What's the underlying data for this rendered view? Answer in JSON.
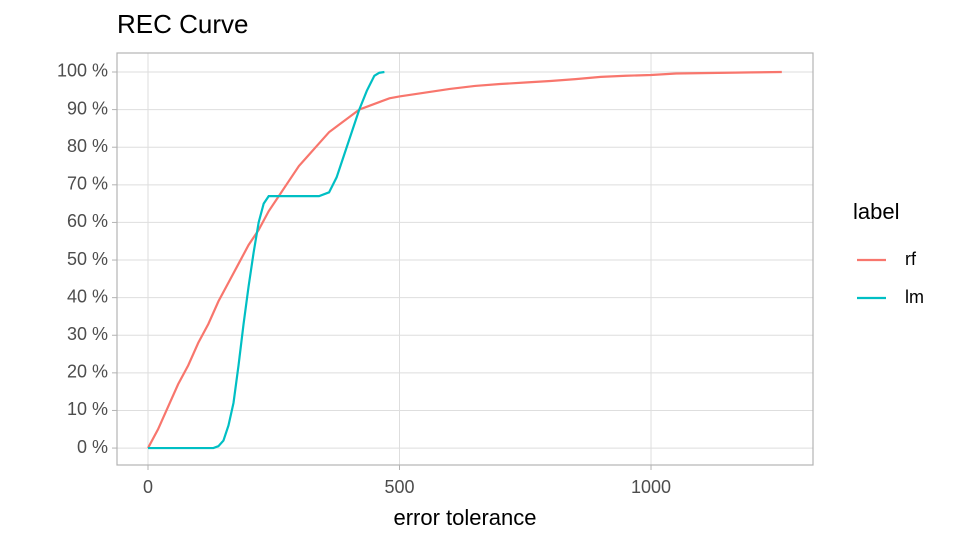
{
  "chart_data": {
    "type": "line",
    "title": "REC Curve",
    "x_label": "error tolerance",
    "legend_title": "label",
    "legend_position": "right",
    "grid": true,
    "xlim": [
      -61.6,
      1322
    ],
    "ylim": [
      -4.5,
      105.05
    ],
    "xticks": [
      0,
      500,
      1000
    ],
    "yticks": [
      {
        "value": 0,
        "label": "0 %"
      },
      {
        "value": 10,
        "label": "10 %"
      },
      {
        "value": 20,
        "label": "20 %"
      },
      {
        "value": 30,
        "label": "30 %"
      },
      {
        "value": 40,
        "label": "40 %"
      },
      {
        "value": 50,
        "label": "50 %"
      },
      {
        "value": 60,
        "label": "60 %"
      },
      {
        "value": 70,
        "label": "70 %"
      },
      {
        "value": 80,
        "label": "80 %"
      },
      {
        "value": 90,
        "label": "90 %"
      },
      {
        "value": 100,
        "label": "100 %"
      }
    ],
    "series": [
      {
        "name": "rf",
        "color": "#F8766D",
        "x": [
          0,
          20,
          40,
          60,
          80,
          100,
          120,
          140,
          160,
          180,
          200,
          220,
          240,
          260,
          280,
          300,
          320,
          340,
          360,
          380,
          400,
          420,
          440,
          460,
          480,
          500,
          550,
          600,
          650,
          700,
          750,
          800,
          850,
          900,
          950,
          1000,
          1050,
          1100,
          1150,
          1200,
          1260
        ],
        "values": [
          0,
          5,
          11,
          17,
          22,
          28,
          33,
          39,
          44,
          49,
          54,
          58,
          63,
          67,
          71,
          75,
          78,
          81,
          84,
          86,
          88,
          90,
          91,
          92,
          93,
          93.5,
          94.5,
          95.5,
          96.3,
          96.8,
          97.2,
          97.6,
          98.1,
          98.7,
          99,
          99.2,
          99.6,
          99.7,
          99.8,
          99.9,
          100
        ]
      },
      {
        "name": "lm",
        "color": "#00BFC4",
        "x": [
          0,
          50,
          100,
          130,
          140,
          150,
          160,
          170,
          180,
          190,
          200,
          210,
          220,
          230,
          240,
          250,
          300,
          340,
          360,
          375,
          390,
          405,
          420,
          435,
          450,
          460,
          470
        ],
        "values": [
          0,
          0,
          0,
          0,
          0.5,
          2,
          6,
          12,
          22,
          33,
          43,
          52,
          60,
          65,
          67,
          67,
          67,
          67,
          68,
          72,
          78,
          84,
          90,
          95,
          99,
          99.8,
          100
        ]
      }
    ]
  }
}
